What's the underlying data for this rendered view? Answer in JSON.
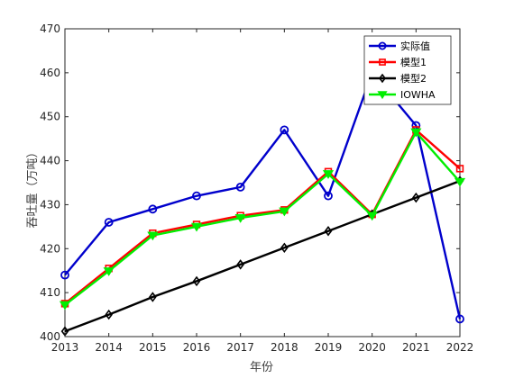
{
  "chart_data": {
    "type": "line",
    "xlabel": "年份",
    "ylabel": "吞吐量（万吨）",
    "xlim": [
      2013,
      2022
    ],
    "ylim": [
      400,
      470
    ],
    "x": [
      2013,
      2014,
      2015,
      2016,
      2017,
      2018,
      2019,
      2020,
      2021,
      2022
    ],
    "x_ticks": [
      "2013",
      "2014",
      "2015",
      "2016",
      "2017",
      "2018",
      "2019",
      "2020",
      "2021",
      "2022"
    ],
    "y_ticks": [
      "400",
      "410",
      "420",
      "430",
      "440",
      "450",
      "460",
      "470"
    ],
    "grid": false,
    "legend_position": "top-right",
    "series": [
      {
        "name": "实际值",
        "color": "#0000cc",
        "marker": "circle",
        "values": [
          414,
          426,
          429,
          432,
          434,
          447,
          432,
          460,
          448,
          404
        ]
      },
      {
        "name": "模型1",
        "color": "#ff0000",
        "marker": "square",
        "values": [
          407.5,
          415.5,
          423.5,
          425.5,
          427.5,
          428.8,
          437.5,
          427.8,
          447,
          438.2
        ]
      },
      {
        "name": "模型2",
        "color": "#000000",
        "marker": "diamond",
        "values": [
          401.2,
          405,
          409,
          412.6,
          416.4,
          420.2,
          424,
          427.8,
          431.6,
          435.4
        ]
      },
      {
        "name": "IOWHA",
        "color": "#00ee00",
        "marker": "triangle-down",
        "values": [
          407.2,
          414.9,
          423,
          425,
          427,
          428.5,
          437,
          427.5,
          446.5,
          435.2
        ]
      }
    ]
  }
}
